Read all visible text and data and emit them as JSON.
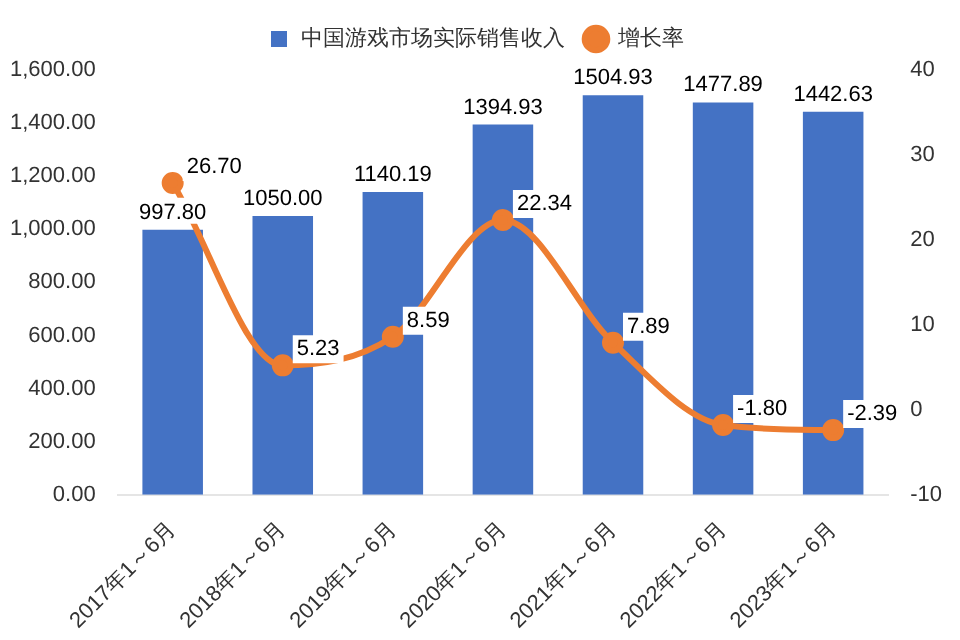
{
  "chart_data": {
    "type": "bar",
    "categories": [
      "2017年1～6月",
      "2018年1～6月",
      "2019年1～6月",
      "2020年1～6月",
      "2021年1～6月",
      "2022年1～6月",
      "2023年1～6月"
    ],
    "series": [
      {
        "name": "中国游戏市场实际销售收入",
        "color": "#4472c4",
        "values": [
          997.8,
          1050,
          1140.19,
          1394.93,
          1504.93,
          1477.89,
          1442.63
        ],
        "value_labels": [
          "997.80",
          "1050.00",
          "1140.19",
          "1394.93",
          "1504.93",
          "1477.89",
          "1442.63"
        ]
      },
      {
        "name": "增长率",
        "type": "line",
        "axis": "y2",
        "color": "#ed7d31",
        "marker": "circle",
        "values": [
          26.7,
          5.23,
          8.59,
          22.34,
          7.89,
          -1.8,
          -2.39
        ],
        "value_labels": [
          "26.70",
          "5.23",
          "8.59",
          "22.34",
          "7.89",
          "-1.80",
          "-2.39"
        ]
      }
    ],
    "ylim": [
      0,
      1600
    ],
    "yticks": [
      {
        "value": 0,
        "label": "0.00"
      },
      {
        "value": 200,
        "label": "200.00"
      },
      {
        "value": 400,
        "label": "400.00"
      },
      {
        "value": 600,
        "label": "600.00"
      },
      {
        "value": 800,
        "label": "800.00"
      },
      {
        "value": 1000,
        "label": "1,000.00"
      },
      {
        "value": 1200,
        "label": "1,200.00"
      },
      {
        "value": 1400,
        "label": "1,400.00"
      },
      {
        "value": 1600,
        "label": "1,600.00"
      }
    ],
    "y2lim": [
      -10,
      40
    ],
    "y2ticks": [
      -10,
      0,
      10,
      20,
      30,
      40
    ],
    "grid": false,
    "legend": "top"
  }
}
